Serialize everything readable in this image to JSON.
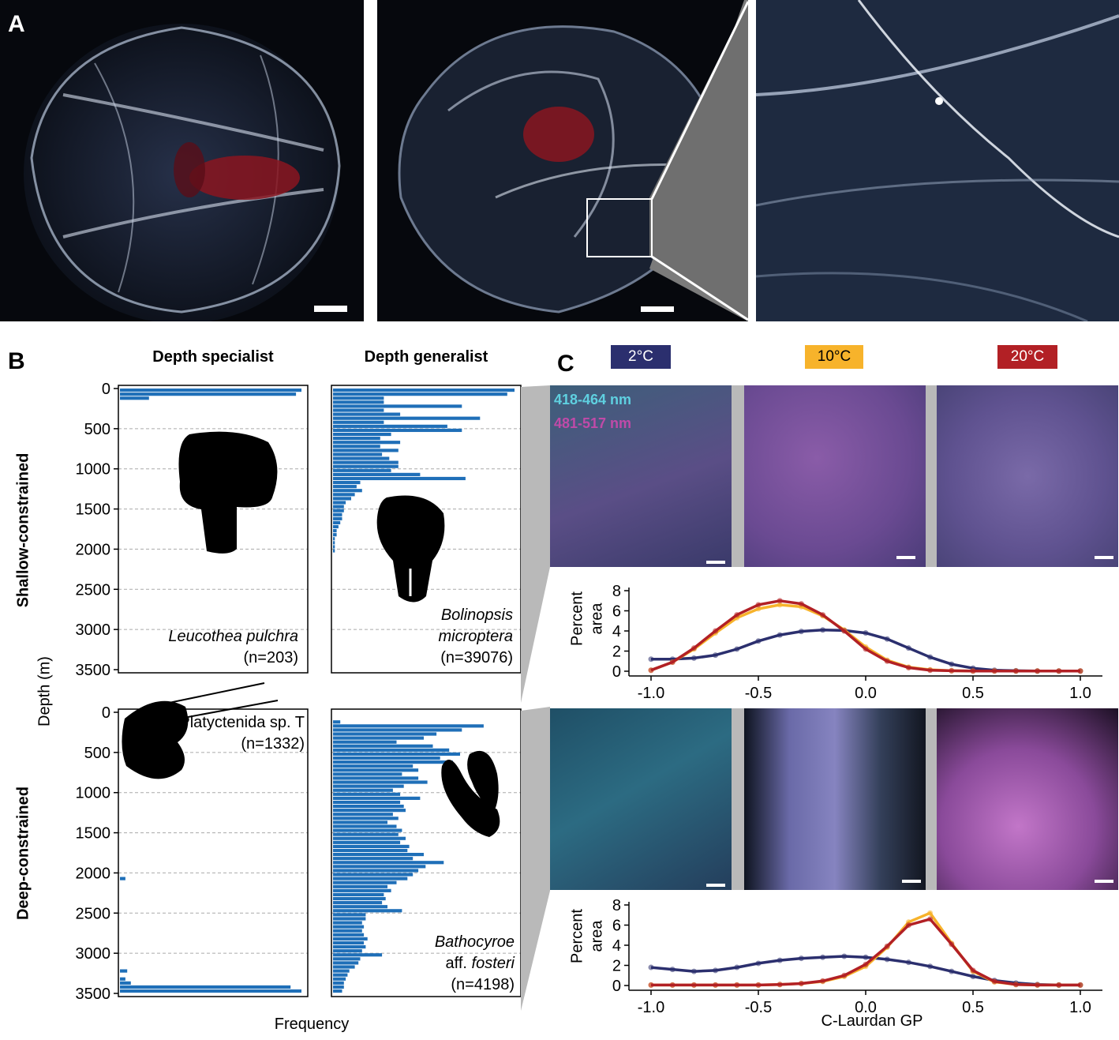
{
  "panels": {
    "a": "A",
    "b": "B",
    "c": "C"
  },
  "panel_b": {
    "col_specialist": "Depth specialist",
    "col_generalist": "Depth generalist",
    "row_shallow": "Shallow-constrained",
    "row_deep": "Deep-constrained",
    "y_label": "Depth (m)",
    "x_label": "Frequency",
    "y_ticks": [
      "0",
      "500",
      "1000",
      "1500",
      "2000",
      "2500",
      "3000",
      "3500"
    ],
    "species": {
      "leucothea": {
        "name": "Leucothea pulchra",
        "n": "(n=203)"
      },
      "bolinopsis": {
        "name_line1": "Bolinopsis",
        "name_line2": "microptera",
        "n": "(n=39076)"
      },
      "platyctenida": {
        "name": "Platyctenida sp. T",
        "n": "(n=1332)"
      },
      "bathocyroe": {
        "name_line1": "Bathocyroe",
        "name_aff": "aff. ",
        "name_italic": "fosteri",
        "n": "(n=4198)"
      }
    },
    "bar_color": "#1f6fb8"
  },
  "panel_c": {
    "temps": [
      {
        "label": "2°C",
        "bg": "#2b2f6e",
        "fg": "#ffffff"
      },
      {
        "label": "10°C",
        "bg": "#f7b32b",
        "fg": "#000000"
      },
      {
        "label": "20°C",
        "bg": "#b22025",
        "fg": "#ffffff"
      }
    ],
    "channel_blue": "418-464 nm",
    "channel_magenta": "481-517 nm",
    "channel_blue_color": "#5fd0e0",
    "channel_magenta_color": "#c04aa8",
    "plot_ylabel_line1": "Percent",
    "plot_ylabel_line2": "area",
    "plot_xlabel": "C-Laurdan GP",
    "x_ticks": [
      "-1.0",
      "-0.5",
      "0.0",
      "0.5",
      "1.0"
    ],
    "y_ticks": [
      "0",
      "2",
      "4",
      "6",
      "8"
    ]
  },
  "chart_data": [
    {
      "type": "bar",
      "orientation": "horizontal",
      "species": "Leucothea pulchra",
      "ylabel": "Depth (m)",
      "xlabel": "Frequency",
      "ylim": [
        0,
        3500
      ],
      "depth_bins": [
        0,
        50,
        100
      ],
      "values": [
        1.0,
        0.97,
        0.16
      ]
    },
    {
      "type": "bar",
      "orientation": "horizontal",
      "species": "Bolinopsis microptera",
      "ylabel": "Depth (m)",
      "xlabel": "Frequency",
      "ylim": [
        0,
        3500
      ],
      "depth_bins": [
        0,
        50,
        100,
        150,
        200,
        250,
        300,
        350,
        400,
        450,
        500,
        550,
        600,
        650,
        700,
        750,
        800,
        850,
        900,
        950,
        1000,
        1050,
        1100,
        1150,
        1200,
        1250,
        1300,
        1350,
        1400,
        1450,
        1500,
        1550,
        1600,
        1650,
        1700,
        1750,
        1800,
        1850,
        1900,
        1950,
        2000
      ],
      "values": [
        1.0,
        0.96,
        0.28,
        0.28,
        0.71,
        0.28,
        0.37,
        0.81,
        0.28,
        0.63,
        0.71,
        0.32,
        0.26,
        0.37,
        0.26,
        0.36,
        0.27,
        0.31,
        0.36,
        0.36,
        0.32,
        0.48,
        0.73,
        0.15,
        0.13,
        0.16,
        0.12,
        0.1,
        0.07,
        0.06,
        0.06,
        0.05,
        0.05,
        0.04,
        0.03,
        0.02,
        0.02,
        0.01,
        0.01,
        0.01,
        0.01
      ]
    },
    {
      "type": "bar",
      "orientation": "horizontal",
      "species": "Platyctenida sp. T",
      "ylabel": "Depth (m)",
      "xlabel": "Frequency",
      "ylim": [
        0,
        3500
      ],
      "depth_bins": [
        2050,
        3200,
        3300,
        3350,
        3400,
        3450
      ],
      "values": [
        0.03,
        0.04,
        0.03,
        0.06,
        0.94,
        1.0
      ]
    },
    {
      "type": "bar",
      "orientation": "horizontal",
      "species": "Bathocyroe aff. fosteri",
      "ylabel": "Depth (m)",
      "xlabel": "Frequency",
      "ylim": [
        0,
        3500
      ],
      "depth_bins": [
        100,
        150,
        200,
        250,
        300,
        350,
        400,
        450,
        500,
        550,
        600,
        650,
        700,
        750,
        800,
        850,
        900,
        950,
        1000,
        1050,
        1100,
        1150,
        1200,
        1250,
        1300,
        1350,
        1400,
        1450,
        1500,
        1550,
        1600,
        1650,
        1700,
        1750,
        1800,
        1850,
        1900,
        1950,
        2000,
        2050,
        2100,
        2150,
        2200,
        2250,
        2300,
        2350,
        2400,
        2450,
        2500,
        2550,
        2600,
        2650,
        2700,
        2750,
        2800,
        2850,
        2900,
        2950,
        3000,
        3050,
        3100,
        3150,
        3200,
        3250,
        3300,
        3350,
        3400,
        3450
      ],
      "values": [
        0.04,
        0.83,
        0.71,
        0.57,
        0.5,
        0.35,
        0.55,
        0.64,
        0.7,
        0.59,
        0.66,
        0.44,
        0.47,
        0.38,
        0.47,
        0.52,
        0.39,
        0.33,
        0.37,
        0.48,
        0.37,
        0.39,
        0.4,
        0.33,
        0.36,
        0.3,
        0.35,
        0.38,
        0.36,
        0.4,
        0.37,
        0.42,
        0.41,
        0.5,
        0.44,
        0.61,
        0.51,
        0.47,
        0.44,
        0.41,
        0.35,
        0.3,
        0.32,
        0.28,
        0.29,
        0.27,
        0.3,
        0.38,
        0.18,
        0.18,
        0.16,
        0.17,
        0.16,
        0.17,
        0.19,
        0.17,
        0.18,
        0.16,
        0.27,
        0.15,
        0.14,
        0.12,
        0.09,
        0.08,
        0.07,
        0.06,
        0.06,
        0.05,
        0.13
      ]
    },
    {
      "type": "line",
      "xlabel": "",
      "ylabel": "Percent area",
      "xlim": [
        -1.0,
        1.0
      ],
      "ylim": [
        0,
        8
      ],
      "x": [
        -1.0,
        -0.9,
        -0.8,
        -0.7,
        -0.6,
        -0.5,
        -0.4,
        -0.3,
        -0.2,
        -0.1,
        0.0,
        0.1,
        0.2,
        0.3,
        0.4,
        0.5,
        0.6,
        0.7,
        0.8,
        0.9,
        1.0
      ],
      "series": [
        {
          "name": "2°C",
          "color": "#2b2f6e",
          "values": [
            1.2,
            1.2,
            1.3,
            1.6,
            2.2,
            3.0,
            3.6,
            3.95,
            4.1,
            4.05,
            3.8,
            3.2,
            2.3,
            1.4,
            0.7,
            0.3,
            0.1,
            0.05,
            0.02,
            0.02,
            0.02
          ]
        },
        {
          "name": "10°C",
          "color": "#f7b32b",
          "values": [
            0.1,
            0.9,
            2.2,
            3.8,
            5.3,
            6.2,
            6.6,
            6.4,
            5.5,
            4.1,
            2.4,
            1.1,
            0.4,
            0.15,
            0.05,
            0.02,
            0.02,
            0.02,
            0.02,
            0.02,
            0.02
          ]
        },
        {
          "name": "20°C",
          "color": "#b22025",
          "values": [
            0.1,
            0.9,
            2.3,
            4.0,
            5.6,
            6.6,
            7.0,
            6.7,
            5.6,
            4.0,
            2.2,
            1.0,
            0.35,
            0.1,
            0.05,
            0.02,
            0.02,
            0.02,
            0.02,
            0.02,
            0.02
          ]
        }
      ]
    },
    {
      "type": "line",
      "xlabel": "C-Laurdan GP",
      "ylabel": "Percent area",
      "xlim": [
        -1.0,
        1.0
      ],
      "ylim": [
        0,
        8
      ],
      "x": [
        -1.0,
        -0.9,
        -0.8,
        -0.7,
        -0.6,
        -0.5,
        -0.4,
        -0.3,
        -0.2,
        -0.1,
        0.0,
        0.1,
        0.2,
        0.3,
        0.4,
        0.5,
        0.6,
        0.7,
        0.8,
        0.9,
        1.0
      ],
      "series": [
        {
          "name": "2°C",
          "color": "#2b2f6e",
          "values": [
            1.8,
            1.6,
            1.4,
            1.5,
            1.8,
            2.2,
            2.5,
            2.7,
            2.8,
            2.9,
            2.8,
            2.6,
            2.3,
            1.9,
            1.4,
            0.9,
            0.5,
            0.25,
            0.1,
            0.05,
            0.05
          ]
        },
        {
          "name": "10°C",
          "color": "#f7b32b",
          "values": [
            0.05,
            0.05,
            0.05,
            0.05,
            0.05,
            0.05,
            0.1,
            0.2,
            0.4,
            0.9,
            1.9,
            3.8,
            6.3,
            7.2,
            4.2,
            1.4,
            0.35,
            0.1,
            0.05,
            0.05,
            0.05
          ]
        },
        {
          "name": "20°C",
          "color": "#b22025",
          "values": [
            0.05,
            0.05,
            0.05,
            0.05,
            0.05,
            0.05,
            0.1,
            0.2,
            0.45,
            1.0,
            2.1,
            3.9,
            6.0,
            6.6,
            4.1,
            1.5,
            0.4,
            0.1,
            0.05,
            0.05,
            0.05
          ]
        }
      ]
    }
  ]
}
